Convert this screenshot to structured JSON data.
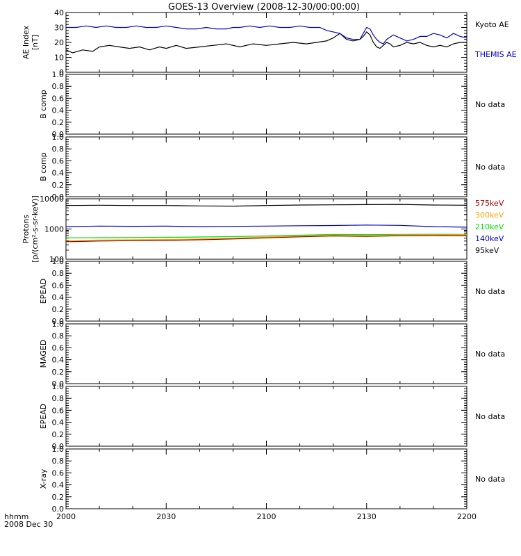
{
  "title": "GOES-13 Overview (2008-12-30/00:00:00)",
  "xaxis": {
    "label_line1": "hhmm",
    "label_line2": "2008 Dec 30",
    "ticks": [
      "2000",
      "2030",
      "2100",
      "2130",
      "2200"
    ]
  },
  "colors": {
    "black": "#000000",
    "blue": "#0000cc",
    "green": "#00dd00",
    "orange": "#ffa500",
    "darkred": "#990000"
  },
  "chart_data": [
    {
      "panel": "ae",
      "type": "line",
      "ylabel_lines": [
        "AE Index",
        "[nT]"
      ],
      "ylim": [
        0,
        40
      ],
      "yticks": [
        "0",
        "10",
        "20",
        "30",
        "40"
      ],
      "x_range_minutes": [
        0,
        120
      ],
      "series": [
        {
          "name": "Kyoto AE",
          "color": "#000000",
          "x": [
            0,
            2,
            5,
            8,
            10,
            13,
            16,
            19,
            22,
            25,
            28,
            30,
            33,
            36,
            40,
            44,
            48,
            52,
            56,
            60,
            64,
            68,
            72,
            75,
            78,
            80,
            82,
            84,
            86,
            88,
            89,
            90,
            91,
            92,
            93,
            94,
            95,
            96,
            97,
            98,
            100,
            102,
            104,
            106,
            108,
            110,
            112,
            114,
            116,
            118,
            120
          ],
          "y": [
            15,
            13,
            15,
            14,
            17,
            18,
            17,
            16,
            17,
            15,
            17,
            16,
            18,
            16,
            17,
            18,
            19,
            17,
            19,
            18,
            19,
            20,
            19,
            20,
            21,
            23,
            26,
            22,
            21,
            22,
            24,
            27,
            25,
            20,
            17,
            16,
            18,
            20,
            19,
            17,
            18,
            20,
            19,
            20,
            18,
            17,
            18,
            17,
            19,
            20,
            20
          ]
        },
        {
          "name": "THEMIS AE",
          "color": "#0000cc",
          "x": [
            0,
            3,
            6,
            9,
            12,
            15,
            18,
            21,
            24,
            27,
            30,
            33,
            36,
            39,
            42,
            45,
            48,
            50,
            52,
            55,
            58,
            61,
            64,
            67,
            70,
            73,
            76,
            78,
            80,
            82,
            84,
            86,
            88,
            89,
            90,
            91,
            92,
            93,
            94,
            95,
            96,
            98,
            100,
            102,
            104,
            106,
            108,
            110,
            112,
            114,
            116,
            118,
            120
          ],
          "y": [
            30,
            30,
            31,
            30,
            31,
            30,
            30,
            31,
            30,
            30,
            31,
            30,
            29,
            29,
            30,
            29,
            29,
            30,
            30,
            31,
            30,
            31,
            30,
            30,
            31,
            30,
            30,
            28,
            27,
            26,
            23,
            22,
            22,
            26,
            30,
            29,
            25,
            22,
            20,
            19,
            22,
            25,
            23,
            21,
            22,
            24,
            24,
            26,
            25,
            23,
            26,
            24,
            23
          ]
        }
      ]
    },
    {
      "panel": "bcomp1",
      "type": "line",
      "ylabel_lines": [
        "B comp"
      ],
      "ylim": [
        0,
        1
      ],
      "yticks": [
        "0.0",
        "0.2",
        "0.4",
        "0.6",
        "0.8",
        "1.0"
      ],
      "status": "No data"
    },
    {
      "panel": "bcomp2",
      "type": "line",
      "ylabel_lines": [
        "B comp"
      ],
      "ylim": [
        0,
        1
      ],
      "yticks": [
        "0.0",
        "0.2",
        "0.4",
        "0.6",
        "0.8",
        "1.0"
      ],
      "status": "No data"
    },
    {
      "panel": "protons",
      "type": "line",
      "ylog": true,
      "ylabel_lines": [
        "Protons",
        "[p/(cm²-s-sr-keV)]"
      ],
      "ylim": [
        100,
        10000
      ],
      "yticks": [
        "100",
        "1000",
        "10000"
      ],
      "x_range_minutes": [
        0,
        120
      ],
      "series": [
        {
          "name": "95keV",
          "color": "#000000",
          "x": [
            0,
            10,
            20,
            30,
            40,
            50,
            60,
            70,
            80,
            90,
            100,
            110,
            120
          ],
          "y": [
            6000,
            6100,
            6000,
            6000,
            5800,
            5700,
            6000,
            6200,
            6300,
            6400,
            6500,
            6200,
            6100
          ]
        },
        {
          "name": "140keV",
          "color": "#0000cc",
          "x": [
            0,
            10,
            20,
            30,
            40,
            50,
            60,
            70,
            80,
            90,
            100,
            110,
            120
          ],
          "y": [
            1200,
            1250,
            1230,
            1240,
            1200,
            1220,
            1250,
            1280,
            1300,
            1350,
            1320,
            1200,
            1150
          ]
        },
        {
          "name": "210keV",
          "color": "#00dd00",
          "x": [
            0,
            10,
            20,
            30,
            40,
            50,
            60,
            70,
            80,
            90,
            100,
            110,
            120
          ],
          "y": [
            510,
            515,
            520,
            530,
            545,
            560,
            590,
            620,
            660,
            650,
            660,
            670,
            660
          ]
        },
        {
          "name": "300keV",
          "color": "#ffa500",
          "x": [
            0,
            10,
            20,
            30,
            40,
            50,
            60,
            70,
            80,
            90,
            100,
            110,
            120
          ],
          "y": [
            420,
            430,
            440,
            450,
            470,
            500,
            540,
            580,
            620,
            600,
            630,
            640,
            640
          ]
        },
        {
          "name": "575keV",
          "color": "#990000",
          "x": [
            0,
            10,
            20,
            30,
            40,
            50,
            60,
            70,
            80,
            90,
            100,
            110,
            120
          ],
          "y": [
            380,
            400,
            410,
            420,
            440,
            470,
            510,
            550,
            590,
            570,
            600,
            610,
            600
          ]
        }
      ],
      "legend_order_top_to_bottom": [
        "575keV",
        "300keV",
        "210keV",
        "140keV",
        "95keV"
      ]
    },
    {
      "panel": "epead1",
      "type": "line",
      "ylabel_lines": [
        "EPEAD"
      ],
      "ylim": [
        0,
        1
      ],
      "yticks": [
        "0.0",
        "0.2",
        "0.4",
        "0.6",
        "0.8",
        "1.0"
      ],
      "status": "No data"
    },
    {
      "panel": "maged",
      "type": "line",
      "ylabel_lines": [
        "MAGED"
      ],
      "ylim": [
        0,
        1
      ],
      "yticks": [
        "0.0",
        "0.2",
        "0.4",
        "0.6",
        "0.8",
        "1.0"
      ],
      "status": "No data"
    },
    {
      "panel": "epead2",
      "type": "line",
      "ylabel_lines": [
        "EPEAD"
      ],
      "ylim": [
        0,
        1
      ],
      "yticks": [
        "0.0",
        "0.2",
        "0.4",
        "0.6",
        "0.8",
        "1.0"
      ],
      "status": "No data"
    },
    {
      "panel": "xray",
      "type": "line",
      "ylabel_lines": [
        "X-ray"
      ],
      "ylim": [
        0,
        1
      ],
      "yticks": [
        "0.0",
        "0.2",
        "0.4",
        "0.6",
        "0.8",
        "1.0"
      ],
      "status": "No data"
    }
  ]
}
